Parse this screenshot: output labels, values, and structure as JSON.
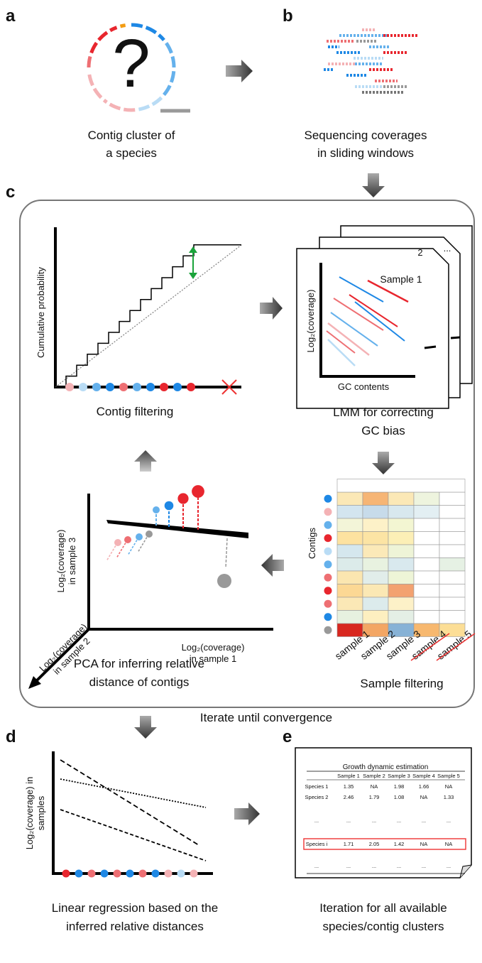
{
  "a": {
    "label": "a",
    "symbol": "?",
    "caption": [
      "Contig cluster of",
      "a species"
    ]
  },
  "b": {
    "label": "b",
    "caption": [
      "Sequencing coverages",
      "in sliding windows"
    ]
  },
  "c": {
    "label": "c",
    "filtering": {
      "y_label": "Cumulative probability",
      "caption": "Contig filtering"
    },
    "lmm": {
      "sample_labels": [
        "Sample 1",
        "2",
        "..."
      ],
      "y_label": "Log₂(coverage)",
      "x_label": "GC contents",
      "caption": [
        "LMM for correcting",
        "GC bias"
      ]
    },
    "heatmap": {
      "y_label": "Contigs",
      "columns": [
        "sample 1",
        "sample 2",
        "sample 3",
        "sample 4",
        "sample 5"
      ],
      "caption": "Sample filtering"
    },
    "pca": {
      "y_label": [
        "Log₂(coverage)",
        "in sample 3"
      ],
      "z_label": [
        "Log₂(coverage)",
        "in sample 2"
      ],
      "x_label": [
        "Log₂(coverage)",
        "in sample 1"
      ],
      "caption": [
        "PCA for inferring relative",
        "distance of contigs"
      ]
    },
    "loop_note": "Iterate until convergence"
  },
  "d": {
    "label": "d",
    "y_label": [
      "Log₂(coverage) in",
      "samples"
    ],
    "caption": [
      "Linear regression based on the",
      "inferred relative distances"
    ]
  },
  "e": {
    "label": "e",
    "table": {
      "title": "Growth dynamic estimation",
      "header": [
        "Sample 1",
        "Sample 2",
        "Sample 3",
        "Sample 4",
        "Sample 5"
      ],
      "rows": [
        [
          "Species 1",
          "1.35",
          "NA",
          "1.98",
          "1.66",
          "NA"
        ],
        [
          "Species 2",
          "2.46",
          "1.79",
          "1.08",
          "NA",
          "1.33"
        ],
        [
          "...",
          "...",
          "...",
          "...",
          "...",
          "..."
        ],
        [
          "Species i",
          "1.71",
          "2.05",
          "1.42",
          "NA",
          "NA"
        ],
        [
          "...",
          "...",
          "...",
          "...",
          "...",
          "..."
        ]
      ]
    },
    "caption": [
      "Iteration for all available",
      "species/contig clusters"
    ]
  }
}
